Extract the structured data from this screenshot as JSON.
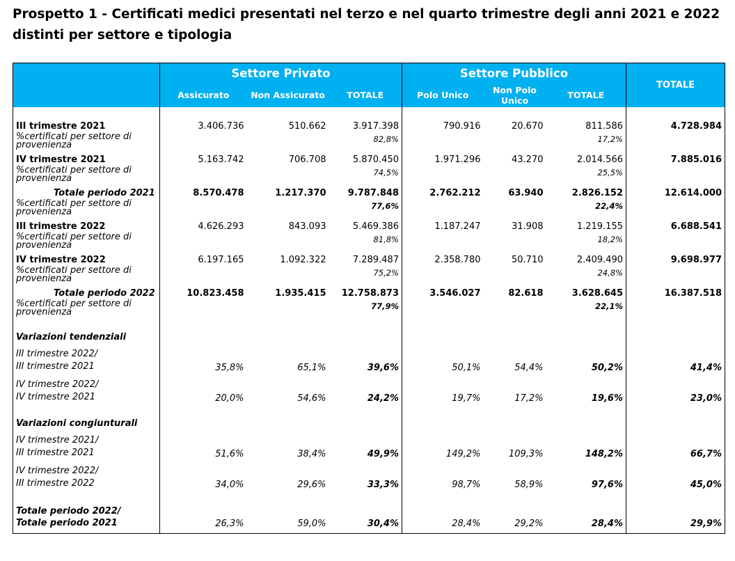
{
  "title": "Prospetto 1 - Certificati medici presentati nel terzo e nel quarto trimestre degli anni 2021 e 2022 distinti per settore e tipologia",
  "header": {
    "privato": "Settore Privato",
    "pubblico": "Settore Pubblico",
    "totale": "TOTALE",
    "cols": [
      "Assicurato",
      "Non Assicurato",
      "TOTALE",
      "Polo Unico",
      "Non Polo Unico",
      "TOTALE"
    ]
  },
  "pct_label": "%certificati per settore di provenienza",
  "rows": [
    {
      "label": "III trimestre 2021",
      "values": [
        "3.406.736",
        "510.662",
        "3.917.398",
        "790.916",
        "20.670",
        "811.586",
        "4.728.984"
      ],
      "pct_priv": "82,8%",
      "pct_pub": "17,2%"
    },
    {
      "label": "IV trimestre 2021",
      "values": [
        "5.163.742",
        "706.708",
        "5.870.450",
        "1.971.296",
        "43.270",
        "2.014.566",
        "7.885.016"
      ],
      "pct_priv": "74,5%",
      "pct_pub": "25,5%"
    },
    {
      "label": "Totale periodo 2021",
      "values": [
        "8.570.478",
        "1.217.370",
        "9.787.848",
        "2.762.212",
        "63.940",
        "2.826.152",
        "12.614.000"
      ],
      "pct_priv": "77,6%",
      "pct_pub": "22,4%"
    },
    {
      "label": "III trimestre 2022",
      "values": [
        "4.626.293",
        "843.093",
        "5.469.386",
        "1.187.247",
        "31.908",
        "1.219.155",
        "6.688.541"
      ],
      "pct_priv": "81,8%",
      "pct_pub": "18,2%"
    },
    {
      "label": "IV trimestre 2022",
      "values": [
        "6.197.165",
        "1.092.322",
        "7.289.487",
        "2.358.780",
        "50.710",
        "2.409.490",
        "9.698.977"
      ],
      "pct_priv": "75,2%",
      "pct_pub": "24,8%"
    },
    {
      "label": "Totale periodo 2022",
      "values": [
        "10.823.458",
        "1.935.415",
        "12.758.873",
        "3.546.027",
        "82.618",
        "3.628.645",
        "16.387.518"
      ],
      "pct_priv": "77,9%",
      "pct_pub": "22,1%"
    }
  ],
  "tendenziali": {
    "title": "Variazioni tendenziali",
    "rows": [
      {
        "l1": "III trimestre 2022/",
        "l2": "III trimestre 2021",
        "values": [
          "35,8%",
          "65,1%",
          "39,6%",
          "50,1%",
          "54,4%",
          "50,2%",
          "41,4%"
        ]
      },
      {
        "l1": "IV trimestre 2022/",
        "l2": "IV trimestre 2021",
        "values": [
          "20,0%",
          "54,6%",
          "24,2%",
          "19,7%",
          "17,2%",
          "19,6%",
          "23,0%"
        ]
      }
    ]
  },
  "congiunturali": {
    "title": "Variazioni congiunturali",
    "rows": [
      {
        "l1": "IV trimestre 2021/",
        "l2": "III trimestre 2021",
        "values": [
          "51,6%",
          "38,4%",
          "49,9%",
          "149,2%",
          "109,3%",
          "148,2%",
          "66,7%"
        ]
      },
      {
        "l1": "IV trimestre 2022/",
        "l2": "III trimestre 2022",
        "values": [
          "34,0%",
          "29,6%",
          "33,3%",
          "98,7%",
          "58,9%",
          "97,6%",
          "45,0%"
        ]
      }
    ]
  },
  "totale_periodo": {
    "l1": "Totale periodo 2022/",
    "l2": "Totale periodo 2021",
    "values": [
      "26,3%",
      "59,0%",
      "30,4%",
      "28,4%",
      "29,2%",
      "28,4%",
      "29,9%"
    ]
  }
}
